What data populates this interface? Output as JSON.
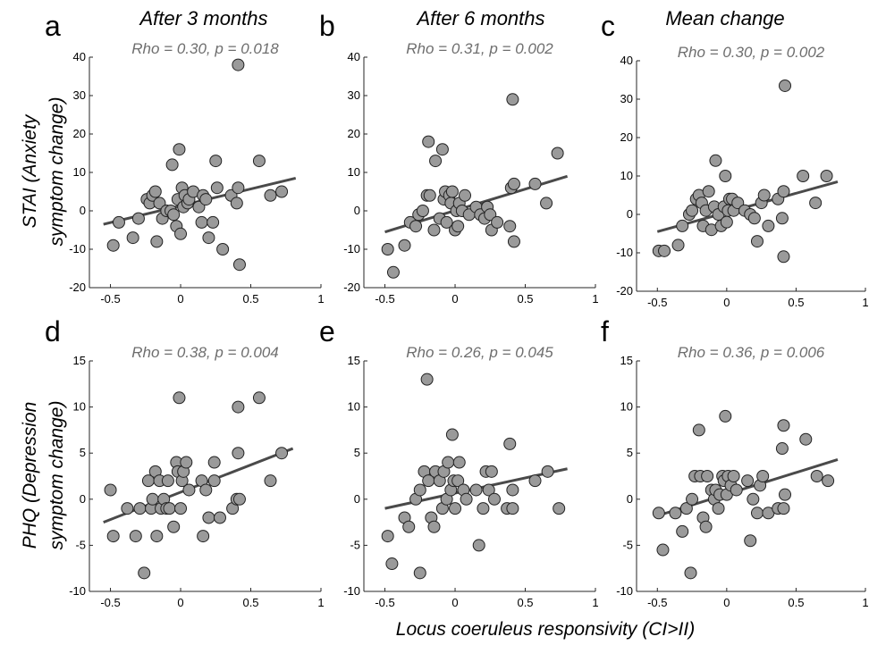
{
  "figure": {
    "column_titles": [
      "After 3 months",
      "After 6 months",
      "Mean change"
    ],
    "row_label_top": [
      "STAI (Anxiety",
      "symptom change)"
    ],
    "row_label_bottom": [
      "PHQ  (Depression",
      "symptom change)"
    ],
    "xlabel": "Locus coeruleus responsivity (CI>II)"
  },
  "colors": {
    "point_fill": "#9a9a9a",
    "point_stroke": "#222222",
    "regression_line": "#4a4a4a",
    "stat_text": "#6e6e6e"
  },
  "chart_data": [
    {
      "type": "scatter",
      "panel": "a",
      "title": "After 3 months",
      "annotation": "Rho = 0.30, p = 0.018",
      "xlim": [
        -0.65,
        1
      ],
      "ylim": [
        -20,
        40
      ],
      "xticks": [
        -0.5,
        0,
        0.5,
        1
      ],
      "xtick_labels": [
        "-0.5",
        "0",
        "0.5",
        "1"
      ],
      "yticks": [
        -20,
        -10,
        0,
        10,
        20,
        30,
        40
      ],
      "ytick_labels": [
        "-20",
        "-10",
        "0",
        "10",
        "20",
        "30",
        "40"
      ],
      "fit": [
        [
          -0.55,
          -3.5
        ],
        [
          0.82,
          8.5
        ]
      ],
      "points": [
        [
          -0.48,
          -9
        ],
        [
          -0.44,
          -3
        ],
        [
          -0.34,
          -7
        ],
        [
          -0.3,
          -2
        ],
        [
          -0.24,
          3
        ],
        [
          -0.22,
          2
        ],
        [
          -0.2,
          4
        ],
        [
          -0.18,
          5
        ],
        [
          -0.17,
          -8
        ],
        [
          -0.15,
          2
        ],
        [
          -0.13,
          -2
        ],
        [
          -0.1,
          0
        ],
        [
          -0.07,
          0
        ],
        [
          -0.06,
          12
        ],
        [
          -0.05,
          -1
        ],
        [
          -0.03,
          -4
        ],
        [
          -0.02,
          3
        ],
        [
          -0.01,
          16
        ],
        [
          0,
          -6
        ],
        [
          0.01,
          6
        ],
        [
          0.02,
          1
        ],
        [
          0.03,
          4
        ],
        [
          0.05,
          2
        ],
        [
          0.06,
          3
        ],
        [
          0.09,
          5
        ],
        [
          0.13,
          1
        ],
        [
          0.15,
          -3
        ],
        [
          0.16,
          4
        ],
        [
          0.18,
          3
        ],
        [
          0.2,
          -7
        ],
        [
          0.23,
          -3
        ],
        [
          0.25,
          13
        ],
        [
          0.26,
          6
        ],
        [
          0.3,
          -10
        ],
        [
          0.36,
          4
        ],
        [
          0.4,
          2
        ],
        [
          0.42,
          -14
        ],
        [
          0.41,
          38
        ],
        [
          0.41,
          6
        ],
        [
          0.56,
          13
        ],
        [
          0.64,
          4
        ],
        [
          0.72,
          5
        ]
      ]
    },
    {
      "type": "scatter",
      "panel": "b",
      "title": "After 6 months",
      "annotation": "Rho = 0.31, p = 0.002",
      "xlim": [
        -0.65,
        1
      ],
      "ylim": [
        -20,
        40
      ],
      "xticks": [
        -0.5,
        0,
        0.5,
        1
      ],
      "xtick_labels": [
        "-0.5",
        "0",
        "0.5",
        "1"
      ],
      "yticks": [
        -20,
        -10,
        0,
        10,
        20,
        30,
        40
      ],
      "ytick_labels": [
        "-20",
        "-10",
        "0",
        "10",
        "20",
        "30",
        "40"
      ],
      "fit": [
        [
          -0.5,
          -5.5
        ],
        [
          0.8,
          9
        ]
      ],
      "points": [
        [
          -0.48,
          -10
        ],
        [
          -0.44,
          -16
        ],
        [
          -0.36,
          -9
        ],
        [
          -0.32,
          -3
        ],
        [
          -0.28,
          -4
        ],
        [
          -0.26,
          -1
        ],
        [
          -0.23,
          0
        ],
        [
          -0.2,
          4
        ],
        [
          -0.19,
          18
        ],
        [
          -0.18,
          4
        ],
        [
          -0.15,
          -5
        ],
        [
          -0.14,
          13
        ],
        [
          -0.11,
          -2
        ],
        [
          -0.09,
          16
        ],
        [
          -0.08,
          3
        ],
        [
          -0.07,
          5
        ],
        [
          -0.06,
          -3
        ],
        [
          -0.04,
          4
        ],
        [
          -0.03,
          2
        ],
        [
          -0.02,
          5
        ],
        [
          0,
          -5
        ],
        [
          0.01,
          0
        ],
        [
          0.02,
          -4
        ],
        [
          0.03,
          2
        ],
        [
          0.05,
          0
        ],
        [
          0.07,
          4
        ],
        [
          0.1,
          -1
        ],
        [
          0.15,
          1
        ],
        [
          0.18,
          -1
        ],
        [
          0.21,
          -2
        ],
        [
          0.23,
          1
        ],
        [
          0.25,
          -1
        ],
        [
          0.26,
          -5
        ],
        [
          0.3,
          -3
        ],
        [
          0.39,
          -4
        ],
        [
          0.4,
          6
        ],
        [
          0.42,
          7
        ],
        [
          0.42,
          -8
        ],
        [
          0.41,
          29
        ],
        [
          0.57,
          7
        ],
        [
          0.65,
          2
        ],
        [
          0.73,
          15
        ]
      ]
    },
    {
      "type": "scatter",
      "panel": "c",
      "title": "Mean change",
      "annotation": "Rho = 0.30, p = 0.002",
      "xlim": [
        -0.65,
        1
      ],
      "ylim": [
        -20,
        40
      ],
      "xticks": [
        -0.5,
        0,
        0.5,
        1
      ],
      "xtick_labels": [
        "-0.5",
        "0",
        "0.5",
        "1"
      ],
      "yticks": [
        -20,
        -10,
        0,
        10,
        20,
        30,
        40
      ],
      "ytick_labels": [
        "-20",
        "-10",
        "0",
        "10",
        "20",
        "30",
        "40"
      ],
      "fit": [
        [
          -0.5,
          -4.5
        ],
        [
          0.8,
          8.5
        ]
      ],
      "points": [
        [
          -0.49,
          -9.5
        ],
        [
          -0.45,
          -9.5
        ],
        [
          -0.35,
          -8
        ],
        [
          -0.32,
          -3
        ],
        [
          -0.27,
          0
        ],
        [
          -0.25,
          1
        ],
        [
          -0.22,
          4
        ],
        [
          -0.2,
          5
        ],
        [
          -0.18,
          3
        ],
        [
          -0.17,
          -3
        ],
        [
          -0.15,
          1
        ],
        [
          -0.13,
          6
        ],
        [
          -0.11,
          -4
        ],
        [
          -0.09,
          2
        ],
        [
          -0.08,
          14
        ],
        [
          -0.06,
          0
        ],
        [
          -0.04,
          -3
        ],
        [
          -0.02,
          2
        ],
        [
          -0.01,
          10
        ],
        [
          0,
          -2
        ],
        [
          0.01,
          1
        ],
        [
          0.02,
          4
        ],
        [
          0.04,
          4
        ],
        [
          0.05,
          1
        ],
        [
          0.08,
          3
        ],
        [
          0.13,
          1
        ],
        [
          0.17,
          0
        ],
        [
          0.2,
          -1
        ],
        [
          0.22,
          -7
        ],
        [
          0.25,
          3
        ],
        [
          0.27,
          5
        ],
        [
          0.3,
          -3
        ],
        [
          0.37,
          4
        ],
        [
          0.4,
          -1
        ],
        [
          0.41,
          6
        ],
        [
          0.41,
          -11
        ],
        [
          0.42,
          33.5
        ],
        [
          0.55,
          10
        ],
        [
          0.64,
          3
        ],
        [
          0.72,
          10
        ]
      ]
    },
    {
      "type": "scatter",
      "panel": "d",
      "title": "",
      "annotation": "Rho = 0.38, p = 0.004",
      "xlim": [
        -0.65,
        1
      ],
      "ylim": [
        -10,
        15
      ],
      "xticks": [
        -0.5,
        0,
        0.5,
        1
      ],
      "xtick_labels": [
        "-0.5",
        "0",
        "0.5",
        "1"
      ],
      "yticks": [
        -10,
        -5,
        0,
        5,
        10,
        15
      ],
      "ytick_labels": [
        "-10",
        "-5",
        "0",
        "5",
        "10",
        "15"
      ],
      "fit": [
        [
          -0.55,
          -2.5
        ],
        [
          0.8,
          5.5
        ]
      ],
      "points": [
        [
          -0.5,
          1
        ],
        [
          -0.48,
          -4
        ],
        [
          -0.38,
          -1
        ],
        [
          -0.32,
          -4
        ],
        [
          -0.29,
          -1
        ],
        [
          -0.26,
          -8
        ],
        [
          -0.23,
          2
        ],
        [
          -0.21,
          -1
        ],
        [
          -0.2,
          0
        ],
        [
          -0.18,
          3
        ],
        [
          -0.17,
          -4
        ],
        [
          -0.15,
          2
        ],
        [
          -0.14,
          -1
        ],
        [
          -0.12,
          0
        ],
        [
          -0.1,
          -1
        ],
        [
          -0.09,
          2
        ],
        [
          -0.08,
          -1
        ],
        [
          -0.05,
          -3
        ],
        [
          -0.03,
          4
        ],
        [
          -0.02,
          3
        ],
        [
          -0.01,
          11
        ],
        [
          0,
          -1
        ],
        [
          0.01,
          2
        ],
        [
          0.02,
          3
        ],
        [
          0.04,
          4
        ],
        [
          0.06,
          1
        ],
        [
          0.15,
          2
        ],
        [
          0.16,
          -4
        ],
        [
          0.18,
          1
        ],
        [
          0.2,
          -2
        ],
        [
          0.24,
          4
        ],
        [
          0.24,
          2
        ],
        [
          0.28,
          -2
        ],
        [
          0.37,
          -1
        ],
        [
          0.4,
          0
        ],
        [
          0.41,
          5
        ],
        [
          0.41,
          10
        ],
        [
          0.42,
          0
        ],
        [
          0.56,
          11
        ],
        [
          0.64,
          2
        ],
        [
          0.72,
          5
        ]
      ]
    },
    {
      "type": "scatter",
      "panel": "e",
      "title": "",
      "annotation": "Rho = 0.26, p = 0.045",
      "xlim": [
        -0.65,
        1
      ],
      "ylim": [
        -10,
        15
      ],
      "xticks": [
        -0.5,
        0,
        0.5,
        1
      ],
      "xtick_labels": [
        "-0.5",
        "0",
        "0.5",
        "1"
      ],
      "yticks": [
        -10,
        -5,
        0,
        5,
        10,
        15
      ],
      "ytick_labels": [
        "-10",
        "-5",
        "0",
        "5",
        "10",
        "15"
      ],
      "fit": [
        [
          -0.5,
          -1
        ],
        [
          0.8,
          3.3
        ]
      ],
      "points": [
        [
          -0.48,
          -4
        ],
        [
          -0.45,
          -7
        ],
        [
          -0.36,
          -2
        ],
        [
          -0.33,
          -3
        ],
        [
          -0.28,
          0
        ],
        [
          -0.25,
          1
        ],
        [
          -0.25,
          -8
        ],
        [
          -0.22,
          3
        ],
        [
          -0.2,
          13
        ],
        [
          -0.19,
          2
        ],
        [
          -0.17,
          -2
        ],
        [
          -0.15,
          -3
        ],
        [
          -0.14,
          3
        ],
        [
          -0.11,
          2
        ],
        [
          -0.09,
          -1
        ],
        [
          -0.08,
          3
        ],
        [
          -0.06,
          0
        ],
        [
          -0.05,
          4
        ],
        [
          -0.03,
          1
        ],
        [
          -0.02,
          7
        ],
        [
          -0.01,
          2
        ],
        [
          0,
          -1
        ],
        [
          0.02,
          2
        ],
        [
          0.03,
          4
        ],
        [
          0.06,
          1
        ],
        [
          0.08,
          0
        ],
        [
          0.15,
          1
        ],
        [
          0.17,
          -5
        ],
        [
          0.2,
          -1
        ],
        [
          0.22,
          3
        ],
        [
          0.24,
          1
        ],
        [
          0.26,
          3
        ],
        [
          0.28,
          0
        ],
        [
          0.37,
          -1
        ],
        [
          0.39,
          6
        ],
        [
          0.41,
          -1
        ],
        [
          0.41,
          1
        ],
        [
          0.57,
          2
        ],
        [
          0.66,
          3
        ],
        [
          0.74,
          -1
        ]
      ]
    },
    {
      "type": "scatter",
      "panel": "f",
      "title": "",
      "annotation": "Rho = 0.36, p = 0.006",
      "xlim": [
        -0.65,
        1
      ],
      "ylim": [
        -10,
        15
      ],
      "xticks": [
        -0.5,
        0,
        0.5,
        1
      ],
      "xtick_labels": [
        "-0.5",
        "0",
        "0.5",
        "1"
      ],
      "yticks": [
        -10,
        -5,
        0,
        5,
        10,
        15
      ],
      "ytick_labels": [
        "-10",
        "-5",
        "0",
        "5",
        "10",
        "15"
      ],
      "fit": [
        [
          -0.5,
          -1.8
        ],
        [
          0.8,
          4.3
        ]
      ],
      "points": [
        [
          -0.49,
          -1.5
        ],
        [
          -0.46,
          -5.5
        ],
        [
          -0.37,
          -1.5
        ],
        [
          -0.32,
          -3.5
        ],
        [
          -0.29,
          -1
        ],
        [
          -0.26,
          -8
        ],
        [
          -0.25,
          0
        ],
        [
          -0.23,
          2.5
        ],
        [
          -0.2,
          7.5
        ],
        [
          -0.19,
          2.5
        ],
        [
          -0.17,
          -2
        ],
        [
          -0.15,
          -3
        ],
        [
          -0.14,
          2.5
        ],
        [
          -0.11,
          1
        ],
        [
          -0.09,
          0
        ],
        [
          -0.08,
          1
        ],
        [
          -0.06,
          -1
        ],
        [
          -0.05,
          0.5
        ],
        [
          -0.03,
          2.5
        ],
        [
          -0.02,
          2
        ],
        [
          -0.01,
          9
        ],
        [
          0,
          0.5
        ],
        [
          0.01,
          2.5
        ],
        [
          0.03,
          1.5
        ],
        [
          0.05,
          2.5
        ],
        [
          0.07,
          1
        ],
        [
          0.15,
          2
        ],
        [
          0.17,
          -4.5
        ],
        [
          0.19,
          0
        ],
        [
          0.22,
          -1.5
        ],
        [
          0.24,
          1.5
        ],
        [
          0.26,
          2.5
        ],
        [
          0.3,
          -1.5
        ],
        [
          0.37,
          -1
        ],
        [
          0.4,
          5.5
        ],
        [
          0.41,
          8
        ],
        [
          0.41,
          -1
        ],
        [
          0.42,
          0.5
        ],
        [
          0.57,
          6.5
        ],
        [
          0.65,
          2.5
        ],
        [
          0.73,
          2
        ]
      ]
    }
  ]
}
